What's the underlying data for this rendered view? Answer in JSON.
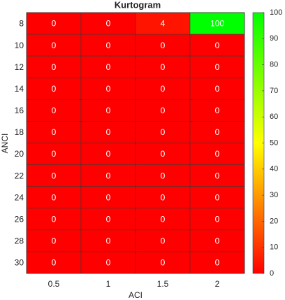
{
  "chart_data": {
    "type": "heatmap",
    "title": "Kurtogram",
    "xlabel": "ACI",
    "ylabel": "ANCI",
    "x": [
      0.5,
      1,
      1.5,
      2
    ],
    "y": [
      8,
      10,
      12,
      14,
      16,
      18,
      20,
      22,
      24,
      26,
      28,
      30
    ],
    "values": [
      [
        0,
        0,
        4,
        100
      ],
      [
        0,
        0,
        0,
        0
      ],
      [
        0,
        0,
        0,
        0
      ],
      [
        0,
        0,
        0,
        0
      ],
      [
        0,
        0,
        0,
        0
      ],
      [
        0,
        0,
        0,
        0
      ],
      [
        0,
        0,
        0,
        0
      ],
      [
        0,
        0,
        0,
        0
      ],
      [
        0,
        0,
        0,
        0
      ],
      [
        0,
        0,
        0,
        0
      ],
      [
        0,
        0,
        0,
        0
      ],
      [
        0,
        0,
        0,
        0
      ]
    ],
    "colormap": [
      "#ff0000",
      "#ffff00",
      "#00ff00"
    ],
    "clim": [
      0,
      100
    ],
    "cticks": [
      0,
      10,
      20,
      30,
      40,
      50,
      60,
      70,
      80,
      90,
      100
    ]
  }
}
